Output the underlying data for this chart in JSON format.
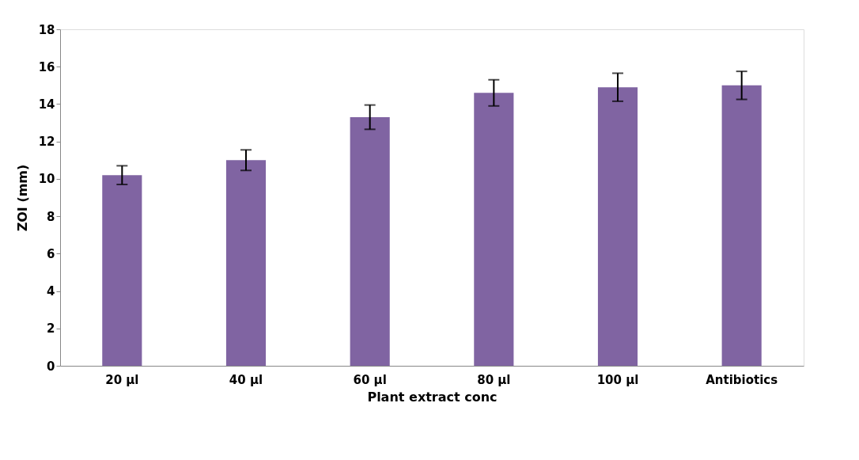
{
  "chart_data": {
    "type": "bar",
    "xlabel": "Plant extract conc",
    "ylabel": "ZOI (mm)",
    "categories": [
      "20 µl",
      "40 µl",
      "60 µl",
      "80 µl",
      "100 µl",
      "Antibiotics"
    ],
    "values": [
      10.2,
      11.0,
      13.3,
      14.6,
      14.9,
      15.0
    ],
    "errors": [
      0.5,
      0.55,
      0.65,
      0.7,
      0.75,
      0.75
    ],
    "color": "#8064a2",
    "ylim": [
      0,
      18
    ],
    "yticks": [
      0,
      2,
      4,
      6,
      8,
      10,
      12,
      14,
      16,
      18
    ],
    "grid": false
  }
}
